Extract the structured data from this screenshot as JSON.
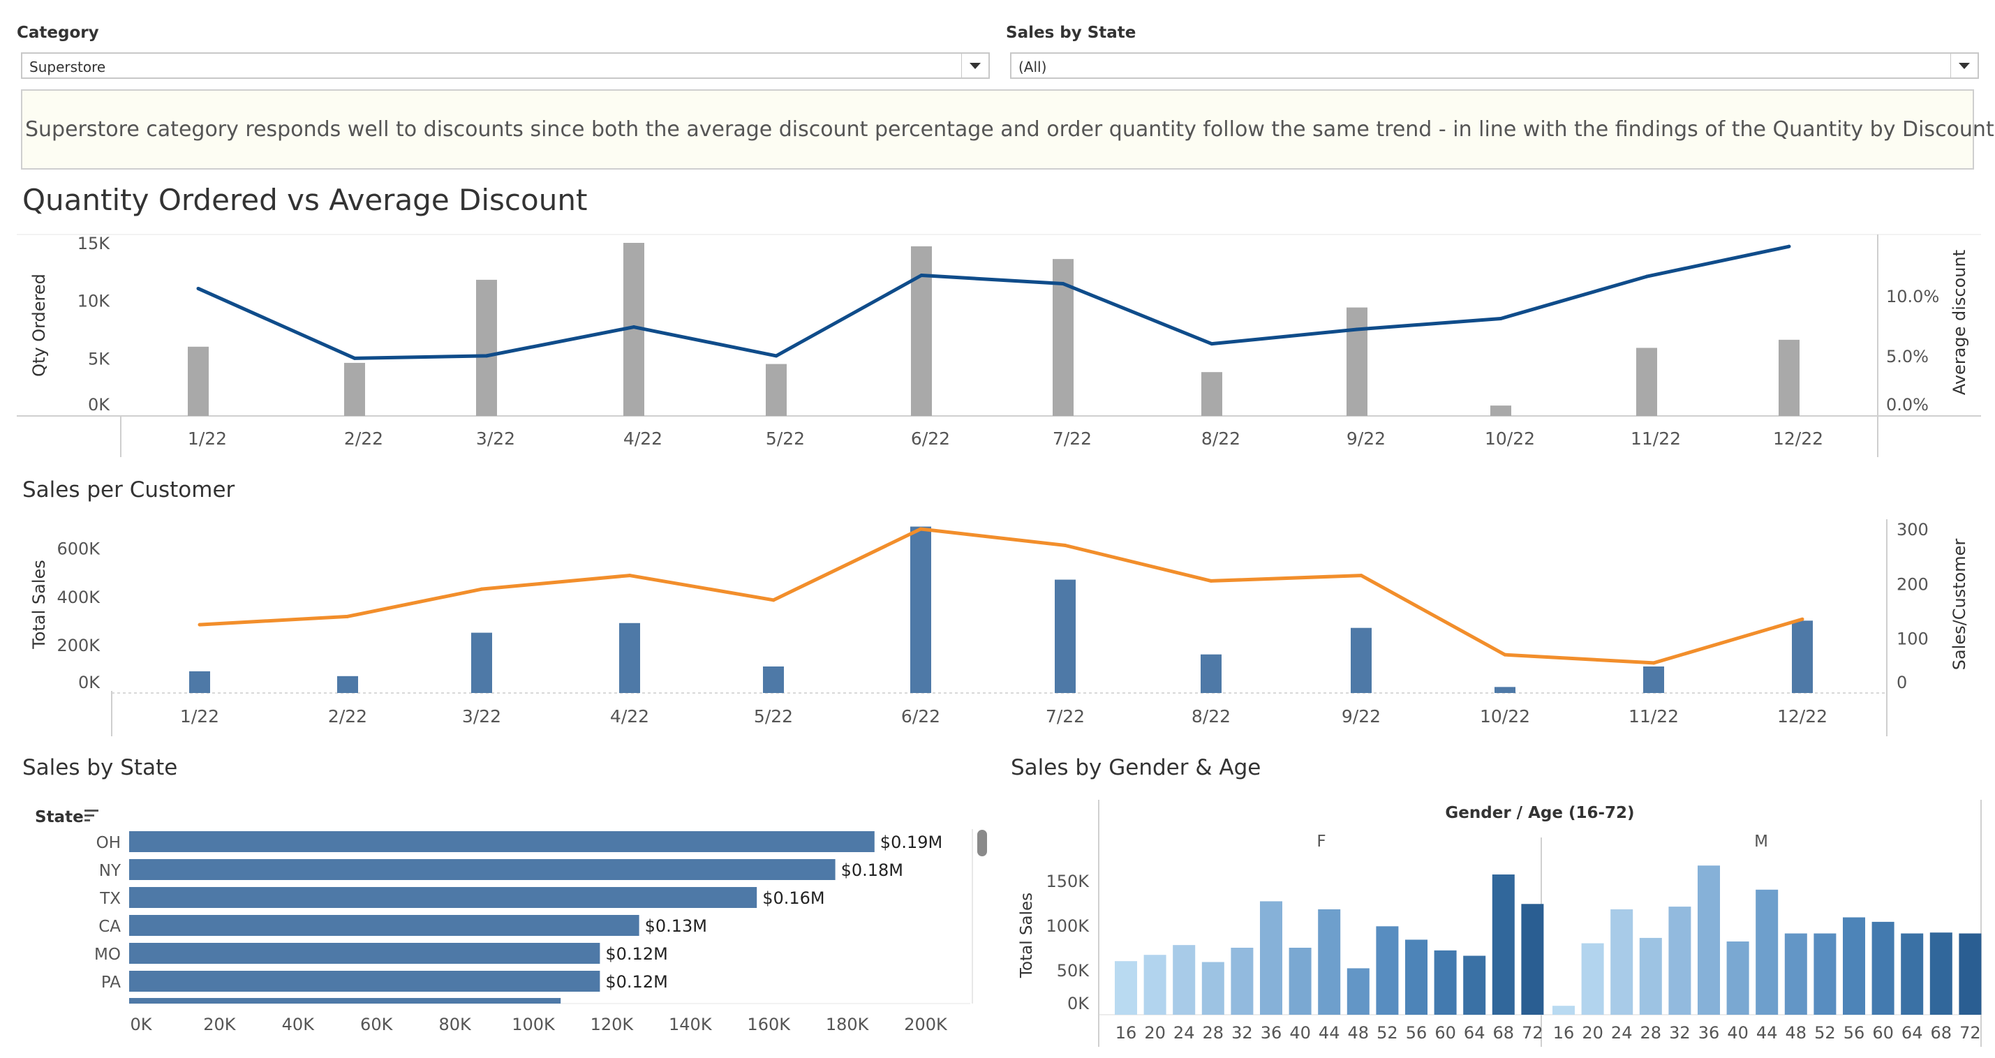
{
  "filters": {
    "category": {
      "label": "Category",
      "value": "Superstore"
    },
    "state": {
      "label": "Sales by State",
      "value": "(All)"
    }
  },
  "insight": "Superstore category responds well to discounts since both the average discount percentage and order quantity follow the same trend - in line with the findings of the Quantity by Discount chart.",
  "colors": {
    "gray_bar": "#a9a9a9",
    "blue_line": "#0f4c8a",
    "blue_bar": "#4e79a7",
    "orange_line": "#f28e2b"
  },
  "chart_data": [
    {
      "type": "bar+line",
      "title": "Quantity Ordered vs Average Discount",
      "categories": [
        "1/22",
        "2/22",
        "3/22",
        "4/22",
        "5/22",
        "6/22",
        "7/22",
        "8/22",
        "9/22",
        "10/22",
        "11/22",
        "12/22"
      ],
      "series": [
        {
          "name": "Qty Ordered",
          "kind": "bar",
          "axis": "left",
          "values": [
            6000,
            4600,
            11800,
            15000,
            4500,
            14700,
            13600,
            3800,
            9400,
            900,
            5900,
            6600
          ]
        },
        {
          "name": "Average discount",
          "kind": "line",
          "axis": "right",
          "values": [
            0.106,
            0.048,
            0.05,
            0.074,
            0.05,
            0.117,
            0.11,
            0.06,
            0.072,
            0.081,
            0.116,
            0.141
          ]
        }
      ],
      "ylabel": "Qty Ordered",
      "y2label": "Average discount",
      "ylim": [
        0,
        15000
      ],
      "y2lim": [
        0,
        0.144
      ],
      "yticks": [
        "0K",
        "5K",
        "10K",
        "15K"
      ],
      "y2ticks": [
        "0.0%",
        "5.0%",
        "10.0%"
      ]
    },
    {
      "type": "bar+line",
      "title": "Sales per Customer",
      "categories": [
        "1/22",
        "2/22",
        "3/22",
        "4/22",
        "5/22",
        "6/22",
        "7/22",
        "8/22",
        "9/22",
        "10/22",
        "11/22",
        "12/22"
      ],
      "series": [
        {
          "name": "Total Sales",
          "kind": "bar",
          "axis": "left",
          "values": [
            90000,
            70000,
            250000,
            290000,
            110000,
            690000,
            470000,
            160000,
            270000,
            25000,
            110000,
            300000
          ]
        },
        {
          "name": "Sales/Customer",
          "kind": "line",
          "axis": "right",
          "values": [
            125,
            140,
            190,
            215,
            170,
            300,
            270,
            205,
            215,
            70,
            55,
            135
          ]
        }
      ],
      "ylabel": "Total Sales",
      "y2label": "Sales/Customer",
      "ylim": [
        0,
        680000
      ],
      "y2lim": [
        0,
        300
      ],
      "yticks": [
        "0K",
        "200K",
        "400K",
        "600K"
      ],
      "y2ticks": [
        "0",
        "100",
        "200",
        "300"
      ]
    },
    {
      "type": "bar",
      "orientation": "horizontal",
      "title": "Sales by State",
      "ylabel": "State",
      "categories": [
        "OH",
        "NY",
        "TX",
        "CA",
        "MO",
        "PA"
      ],
      "values": [
        190000,
        180000,
        160000,
        130000,
        120000,
        120000
      ],
      "data_labels": [
        "$0.19M",
        "$0.18M",
        "$0.16M",
        "$0.13M",
        "$0.12M",
        "$0.12M"
      ],
      "partial_row_value": 110000,
      "xlim": [
        0,
        220000
      ],
      "xticks": [
        "0K",
        "20K",
        "40K",
        "60K",
        "80K",
        "100K",
        "120K",
        "140K",
        "160K",
        "180K",
        "200K"
      ]
    },
    {
      "type": "bar",
      "title": "Sales by Gender & Age",
      "header": "Gender / Age (16-72)",
      "ylabel": "Total Sales",
      "ylim": [
        0,
        170000
      ],
      "yticks": [
        "0K",
        "50K",
        "100K",
        "150K"
      ],
      "groups": [
        {
          "name": "F",
          "ages": [
            "16",
            "20",
            "24",
            "28",
            "32",
            "36",
            "40",
            "44",
            "48",
            "52",
            "56",
            "60",
            "64",
            "68",
            "72"
          ],
          "values": [
            60000,
            67000,
            78000,
            59000,
            75000,
            127000,
            75000,
            118000,
            52000,
            99000,
            84000,
            72000,
            66000,
            157000,
            124000
          ]
        },
        {
          "name": "M",
          "ages": [
            "16",
            "20",
            "24",
            "28",
            "32",
            "36",
            "40",
            "44",
            "48",
            "52",
            "56",
            "60",
            "64",
            "68",
            "72"
          ],
          "values": [
            10000,
            80000,
            118000,
            86000,
            121000,
            167000,
            82000,
            140000,
            91000,
            91000,
            109000,
            104000,
            91000,
            92000,
            91000
          ]
        }
      ]
    }
  ]
}
